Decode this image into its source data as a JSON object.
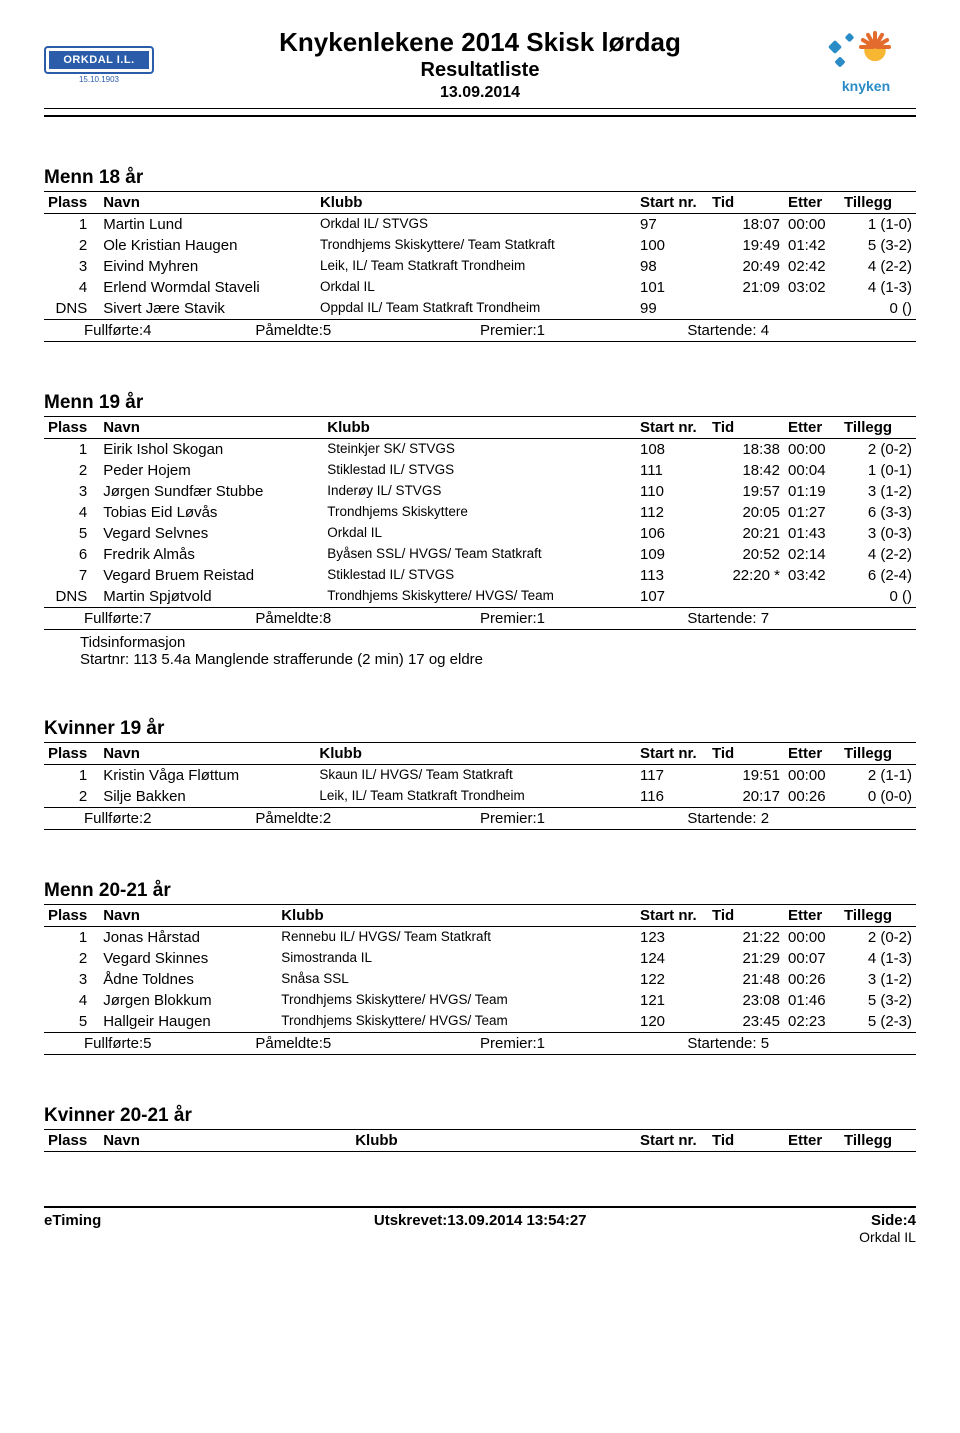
{
  "header": {
    "title_main": "Knykenlekene 2014 Skisk lørdag",
    "title_sub": "Resultatliste",
    "title_date": "13.09.2014",
    "club_logo_text": "ORKDAL I.L.",
    "club_logo_date": "15.10.1903",
    "event_logo_text": "knyken"
  },
  "columns": {
    "plass": "Plass",
    "navn": "Navn",
    "klubb": "Klubb",
    "start": "Start nr.",
    "tid": "Tid",
    "etter": "Etter",
    "tillegg": "Tillegg"
  },
  "summary_labels": {
    "fullforte": "Fullførte:",
    "pameldte": "Påmeldte:",
    "premier": "Premier:",
    "startende": "Startende:"
  },
  "sections": [
    {
      "title": "Menn 18 år",
      "rows": [
        {
          "plass": "1",
          "navn": "Martin Lund",
          "klubb": "Orkdal IL/ STVGS",
          "start": "97",
          "tid": "18:07",
          "etter": "00:00",
          "tillegg": "1 (1-0)"
        },
        {
          "plass": "2",
          "navn": "Ole Kristian Haugen",
          "klubb": "Trondhjems Skiskyttere/ Team Statkraft",
          "start": "100",
          "tid": "19:49",
          "etter": "01:42",
          "tillegg": "5 (3-2)"
        },
        {
          "plass": "3",
          "navn": "Eivind Myhren",
          "klubb": "Leik, IL/ Team Statkraft Trondheim",
          "start": "98",
          "tid": "20:49",
          "etter": "02:42",
          "tillegg": "4 (2-2)"
        },
        {
          "plass": "4",
          "navn": "Erlend Wormdal Staveli",
          "klubb": "Orkdal IL",
          "start": "101",
          "tid": "21:09",
          "etter": "03:02",
          "tillegg": "4 (1-3)"
        },
        {
          "plass": "DNS",
          "navn": "Sivert Jære Stavik",
          "klubb": "Oppdal IL/ Team Statkraft Trondheim",
          "start": "99",
          "tid": "",
          "etter": "",
          "tillegg": "0 ()"
        }
      ],
      "summary": {
        "fullforte": "4",
        "pameldte": "5",
        "premier": "1",
        "startende": "4"
      },
      "notes": []
    },
    {
      "title": "Menn 19 år",
      "rows": [
        {
          "plass": "1",
          "navn": "Eirik Ishol Skogan",
          "klubb": "Steinkjer SK/ STVGS",
          "start": "108",
          "tid": "18:38",
          "etter": "00:00",
          "tillegg": "2 (0-2)"
        },
        {
          "plass": "2",
          "navn": "Peder Hojem",
          "klubb": "Stiklestad IL/ STVGS",
          "start": "111",
          "tid": "18:42",
          "etter": "00:04",
          "tillegg": "1 (0-1)"
        },
        {
          "plass": "3",
          "navn": "Jørgen Sundfær Stubbe",
          "klubb": "Inderøy IL/ STVGS",
          "start": "110",
          "tid": "19:57",
          "etter": "01:19",
          "tillegg": "3 (1-2)"
        },
        {
          "plass": "4",
          "navn": "Tobias Eid Løvås",
          "klubb": "Trondhjems Skiskyttere",
          "start": "112",
          "tid": "20:05",
          "etter": "01:27",
          "tillegg": "6 (3-3)"
        },
        {
          "plass": "5",
          "navn": "Vegard Selvnes",
          "klubb": "Orkdal IL",
          "start": "106",
          "tid": "20:21",
          "etter": "01:43",
          "tillegg": "3 (0-3)"
        },
        {
          "plass": "6",
          "navn": "Fredrik Almås",
          "klubb": "Byåsen SSL/ HVGS/ Team Statkraft",
          "start": "109",
          "tid": "20:52",
          "etter": "02:14",
          "tillegg": "4 (2-2)"
        },
        {
          "plass": "7",
          "navn": "Vegard Bruem Reistad",
          "klubb": "Stiklestad IL/ STVGS",
          "start": "113",
          "tid": "22:20 *",
          "etter": "03:42",
          "tillegg": "6 (2-4)"
        },
        {
          "plass": "DNS",
          "navn": "Martin Spjøtvold",
          "klubb": "Trondhjems Skiskyttere/ HVGS/ Team",
          "start": "107",
          "tid": "",
          "etter": "",
          "tillegg": "0 ()"
        }
      ],
      "summary": {
        "fullforte": "7",
        "pameldte": "8",
        "premier": "1",
        "startende": "7"
      },
      "notes": [
        "Tidsinformasjon",
        "Startnr: 113 5.4a  Manglende strafferunde (2 min) 17 og eldre"
      ]
    },
    {
      "title": "Kvinner 19 år",
      "rows": [
        {
          "plass": "1",
          "navn": "Kristin Våga Fløttum",
          "klubb": "Skaun IL/ HVGS/ Team Statkraft",
          "start": "117",
          "tid": "19:51",
          "etter": "00:00",
          "tillegg": "2 (1-1)"
        },
        {
          "plass": "2",
          "navn": "Silje Bakken",
          "klubb": "Leik, IL/ Team Statkraft Trondheim",
          "start": "116",
          "tid": "20:17",
          "etter": "00:26",
          "tillegg": "0 (0-0)"
        }
      ],
      "summary": {
        "fullforte": "2",
        "pameldte": "2",
        "premier": "1",
        "startende": "2"
      },
      "notes": []
    },
    {
      "title": "Menn 20-21 år",
      "rows": [
        {
          "plass": "1",
          "navn": "Jonas Hårstad",
          "klubb": "Rennebu IL/ HVGS/ Team Statkraft",
          "start": "123",
          "tid": "21:22",
          "etter": "00:00",
          "tillegg": "2 (0-2)"
        },
        {
          "plass": "2",
          "navn": "Vegard Skinnes",
          "klubb": "Simostranda IL",
          "start": "124",
          "tid": "21:29",
          "etter": "00:07",
          "tillegg": "4 (1-3)"
        },
        {
          "plass": "3",
          "navn": "Ådne Toldnes",
          "klubb": "Snåsa SSL",
          "start": "122",
          "tid": "21:48",
          "etter": "00:26",
          "tillegg": "3 (1-2)"
        },
        {
          "plass": "4",
          "navn": "Jørgen Blokkum",
          "klubb": "Trondhjems Skiskyttere/ HVGS/ Team",
          "start": "121",
          "tid": "23:08",
          "etter": "01:46",
          "tillegg": "5 (3-2)"
        },
        {
          "plass": "5",
          "navn": "Hallgeir Haugen",
          "klubb": "Trondhjems Skiskyttere/ HVGS/ Team",
          "start": "120",
          "tid": "23:45",
          "etter": "02:23",
          "tillegg": "5 (2-3)"
        }
      ],
      "summary": {
        "fullforte": "5",
        "pameldte": "5",
        "premier": "1",
        "startende": "5"
      },
      "notes": []
    },
    {
      "title": "Kvinner 20-21 år",
      "rows": [],
      "summary": null,
      "notes": []
    }
  ],
  "footer": {
    "left": "eTiming",
    "center": "Utskrevet:13.09.2014 13:54:27",
    "right_top": "Side:4",
    "right_sub": "Orkdal IL"
  },
  "style": {
    "page_bg": "#ffffff",
    "text_color": "#000000",
    "rule_color": "#000000",
    "accent_blue": "#2a5caa",
    "logo_blue": "#2a8cc7",
    "logo_orange": "#e46b2e",
    "title_main_fontsize": 26,
    "title_sub_fontsize": 20,
    "section_title_fontsize": 19,
    "body_fontsize": 15,
    "klubb_fontsize": 13.5,
    "font_family": "Arial, Helvetica, sans-serif"
  }
}
